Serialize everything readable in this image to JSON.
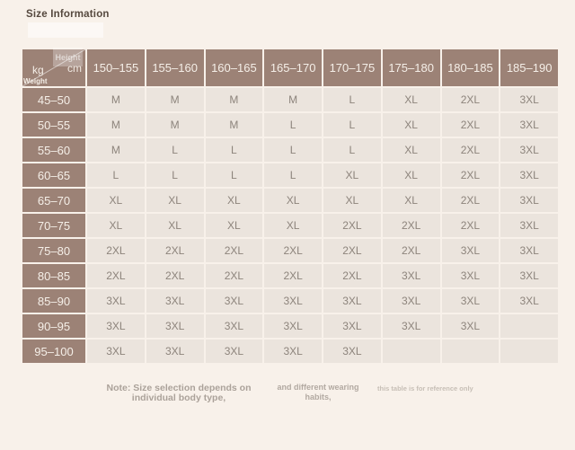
{
  "page": {
    "title": "Size Information"
  },
  "corner": {
    "left_unit": "kg",
    "right_unit": "cm",
    "bottom_left_label": "Weight",
    "top_right_label": "Height"
  },
  "chart_data": {
    "type": "table",
    "title": "Size Information",
    "columns_label": "Height (cm)",
    "rows_label": "Weight (kg)",
    "columns": [
      "150–155",
      "155–160",
      "160–165",
      "165–170",
      "170–175",
      "175–180",
      "180–185",
      "185–190"
    ],
    "rows": [
      {
        "weight": "45–50",
        "sizes": [
          "M",
          "M",
          "M",
          "M",
          "L",
          "XL",
          "2XL",
          "3XL"
        ]
      },
      {
        "weight": "50–55",
        "sizes": [
          "M",
          "M",
          "M",
          "L",
          "L",
          "XL",
          "2XL",
          "3XL"
        ]
      },
      {
        "weight": "55–60",
        "sizes": [
          "M",
          "L",
          "L",
          "L",
          "L",
          "XL",
          "2XL",
          "3XL"
        ]
      },
      {
        "weight": "60–65",
        "sizes": [
          "L",
          "L",
          "L",
          "L",
          "XL",
          "XL",
          "2XL",
          "3XL"
        ]
      },
      {
        "weight": "65–70",
        "sizes": [
          "XL",
          "XL",
          "XL",
          "XL",
          "XL",
          "XL",
          "2XL",
          "3XL"
        ]
      },
      {
        "weight": "70–75",
        "sizes": [
          "XL",
          "XL",
          "XL",
          "XL",
          "2XL",
          "2XL",
          "2XL",
          "3XL"
        ]
      },
      {
        "weight": "75–80",
        "sizes": [
          "2XL",
          "2XL",
          "2XL",
          "2XL",
          "2XL",
          "2XL",
          "3XL",
          "3XL"
        ]
      },
      {
        "weight": "80–85",
        "sizes": [
          "2XL",
          "2XL",
          "2XL",
          "2XL",
          "2XL",
          "3XL",
          "3XL",
          "3XL"
        ]
      },
      {
        "weight": "85–90",
        "sizes": [
          "3XL",
          "3XL",
          "3XL",
          "3XL",
          "3XL",
          "3XL",
          "3XL",
          "3XL"
        ]
      },
      {
        "weight": "90–95",
        "sizes": [
          "3XL",
          "3XL",
          "3XL",
          "3XL",
          "3XL",
          "3XL",
          "3XL",
          ""
        ]
      },
      {
        "weight": "95–100",
        "sizes": [
          "3XL",
          "3XL",
          "3XL",
          "3XL",
          "3XL",
          "",
          "",
          ""
        ]
      }
    ]
  },
  "note": {
    "primary": "Note: Size selection depends on individual body type,",
    "secondary": "and different wearing habits,",
    "tertiary": "this table is for reference only"
  },
  "colors": {
    "page_bg": "#f8f1ea",
    "header_bg": "#9c8276",
    "header_text": "#f5efe8",
    "cell_bg": "#ebe4dd",
    "cell_text": "#8d847c",
    "title_text": "#55483e",
    "note_text": "#aba29a"
  }
}
